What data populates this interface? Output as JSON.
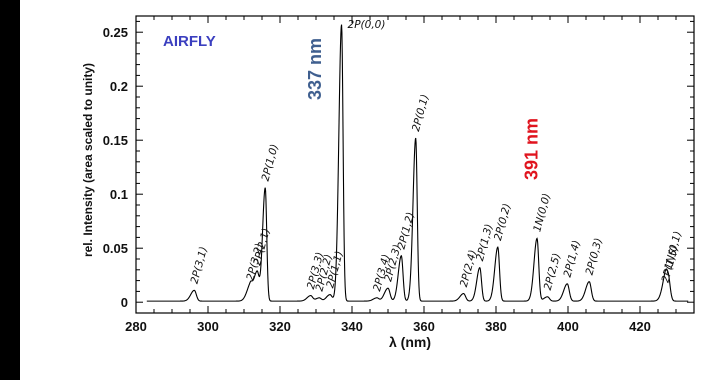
{
  "chart_data": {
    "type": "line",
    "brand": "AIRFLY",
    "xlabel": "λ (nm)",
    "ylabel": "rel. Intensity (area scaled to unity)",
    "xlim": [
      280,
      435
    ],
    "ylim": [
      -0.01,
      0.265
    ],
    "x_ticks": [
      280,
      300,
      320,
      340,
      360,
      380,
      400,
      420
    ],
    "x_tick_labels": [
      "280",
      "300",
      "320",
      "340",
      "360",
      "380",
      "400",
      "420"
    ],
    "y_ticks": [
      0,
      0.05,
      0.1,
      0.15,
      0.2,
      0.25
    ],
    "y_tick_labels": [
      "0",
      "0.05",
      "0.1",
      "0.15",
      "0.2",
      "0.25"
    ],
    "highlights": [
      {
        "text": "337 nm",
        "x": 332,
        "color": "#3f5f8f"
      },
      {
        "text": "391 nm",
        "x": 391,
        "color": "#e0141e"
      }
    ],
    "brand_color": "#3b3fbf",
    "line_color": "#000000",
    "baseline": 0.001,
    "peaks": [
      {
        "label": "2P(3,1)",
        "x": 296.2,
        "y": 0.011
      },
      {
        "label": "2P(3,2)",
        "x": 311.7,
        "y": 0.014
      },
      {
        "label": "2P(2,1)",
        "x": 313.6,
        "y": 0.028
      },
      {
        "label": "2P(1,0)",
        "x": 315.9,
        "y": 0.106
      },
      {
        "label": "2P(3,3)",
        "x": 328.5,
        "y": 0.006
      },
      {
        "label": "2P(2,2)",
        "x": 330.9,
        "y": 0.004
      },
      {
        "label": "2P(1,1)",
        "x": 333.9,
        "y": 0.007
      },
      {
        "label": "2P(0,0)",
        "x": 337.1,
        "y": 0.257
      },
      {
        "label": "2P(3,4)",
        "x": 346.9,
        "y": 0.004
      },
      {
        "label": "2P(2,3)",
        "x": 350.0,
        "y": 0.013
      },
      {
        "label": "2P(1,2)",
        "x": 353.7,
        "y": 0.043
      },
      {
        "label": "2P(0,1)",
        "x": 357.7,
        "y": 0.152
      },
      {
        "label": "2P(2,4)",
        "x": 371.0,
        "y": 0.008
      },
      {
        "label": "2P(1,3)",
        "x": 375.5,
        "y": 0.032
      },
      {
        "label": "2P(0,2)",
        "x": 380.5,
        "y": 0.051
      },
      {
        "label": "1N(0,0)",
        "x": 391.4,
        "y": 0.059
      },
      {
        "label": "2P(2,5)",
        "x": 394.3,
        "y": 0.005
      },
      {
        "label": "2P(1,4)",
        "x": 399.8,
        "y": 0.017
      },
      {
        "label": "2P(0,3)",
        "x": 405.9,
        "y": 0.019
      },
      {
        "label": "2P(1,5)",
        "x": 427.0,
        "y": 0.012
      },
      {
        "label": "1N(0,1)",
        "x": 427.8,
        "y": 0.024
      }
    ]
  }
}
